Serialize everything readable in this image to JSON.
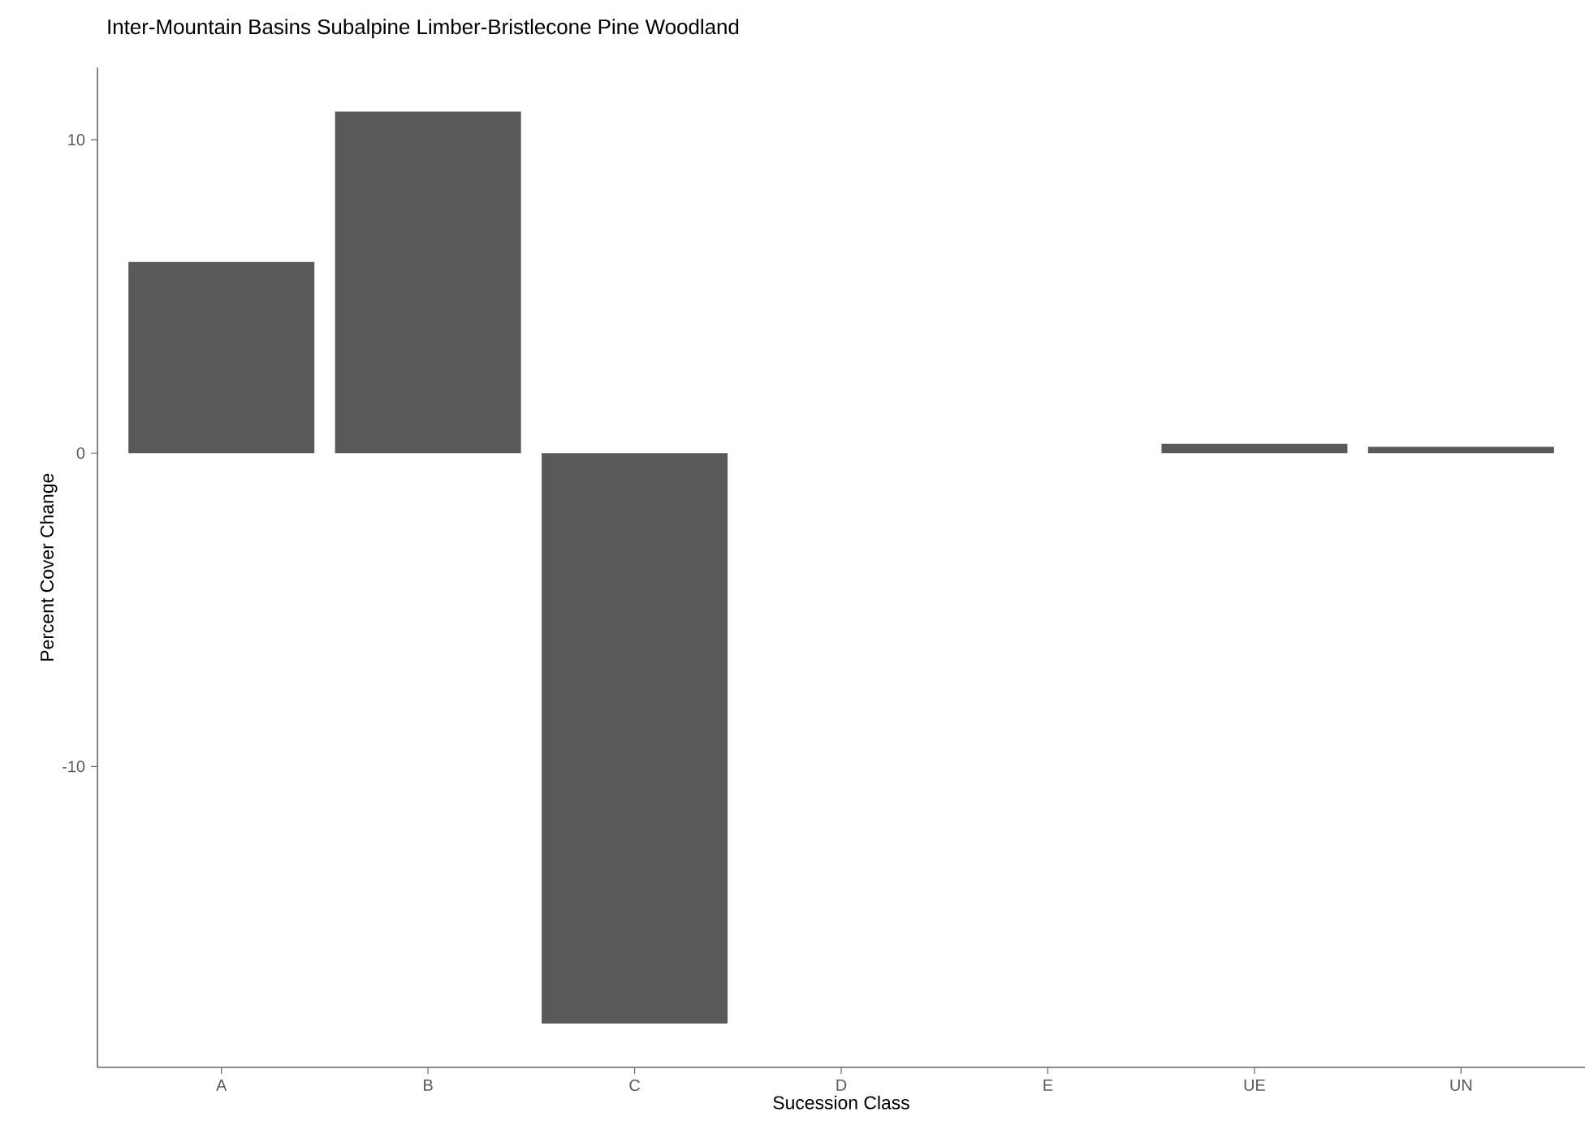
{
  "chart_data": {
    "type": "bar",
    "title": "Inter-Mountain Basins Subalpine Limber-Bristlecone Pine Woodland",
    "xlabel": "Sucession Class",
    "ylabel": "Percent Cover Change",
    "categories": [
      "A",
      "B",
      "C",
      "D",
      "E",
      "UE",
      "UN"
    ],
    "values": [
      6.1,
      10.9,
      -18.2,
      0,
      0,
      0.3,
      0.2
    ],
    "color": "#595959",
    "ylim": [
      -19.6,
      12.3
    ],
    "yticks": [
      -10,
      0,
      10
    ]
  }
}
